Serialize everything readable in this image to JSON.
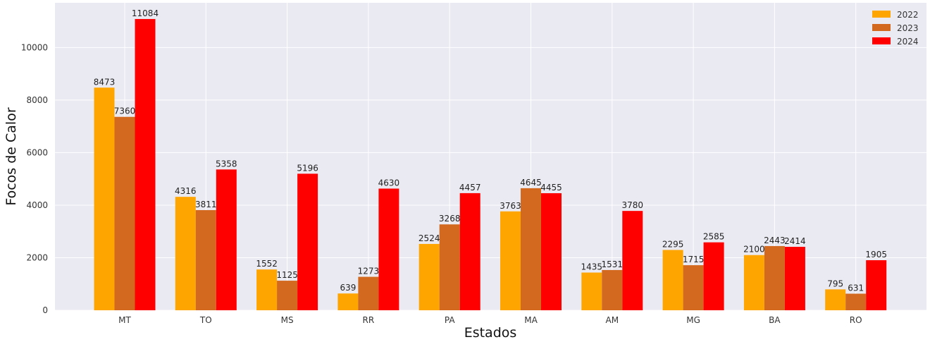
{
  "chart_data": {
    "type": "bar",
    "title": "",
    "xlabel": "Estados",
    "ylabel": "Focos de Calor",
    "categories": [
      "MT",
      "TO",
      "MS",
      "RR",
      "PA",
      "MA",
      "AM",
      "MG",
      "BA",
      "RO"
    ],
    "series": [
      {
        "name": "2022",
        "color": "#FFA500",
        "values": [
          8473,
          4316,
          1552,
          639,
          2524,
          3763,
          1435,
          2295,
          2100,
          795
        ]
      },
      {
        "name": "2023",
        "color": "#D2691E",
        "values": [
          7360,
          3811,
          1125,
          1273,
          3268,
          4645,
          1531,
          1715,
          2443,
          631
        ]
      },
      {
        "name": "2024",
        "color": "#FF0000",
        "values": [
          11084,
          5358,
          5196,
          4630,
          4457,
          4455,
          3780,
          2585,
          2414,
          1905
        ]
      }
    ],
    "ylim": [
      0,
      11700
    ],
    "yticks": [
      0,
      2000,
      4000,
      6000,
      8000,
      10000
    ],
    "grid": true,
    "legend_position": "top-right",
    "background": "#EAEAF2"
  }
}
